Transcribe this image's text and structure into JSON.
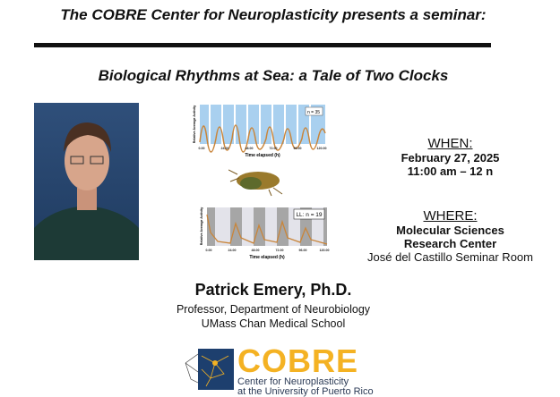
{
  "header": {
    "title": "The COBRE Center for Neuroplasticity presents a seminar:",
    "talk_title": "Biological Rhythms at Sea: a Tale of Two Clocks"
  },
  "figures": {
    "top": {
      "legend": "n = 35",
      "xlabel": "Time elapsed (h)",
      "ylabel": "Relative Average Activity",
      "ticks": [
        "0.00",
        "24.00",
        "48.00",
        "72.00",
        "96.00",
        "120.00"
      ]
    },
    "bottom": {
      "legend": "LL: n = 19",
      "xlabel": "Time elapsed (h)",
      "ylabel": "Relative Average Activity",
      "ticks": [
        "0.00",
        "24.00",
        "48.00",
        "72.00",
        "96.00",
        "120.00"
      ]
    }
  },
  "when": {
    "label": "WHEN:",
    "date": "February 27, 2025",
    "time": "11:00 am – 12 n"
  },
  "where": {
    "label": "WHERE:",
    "line1": "Molecular Sciences",
    "line2": "Research Center",
    "line3": "José del Castillo Seminar Room"
  },
  "speaker": {
    "name": "Patrick Emery, Ph.D.",
    "title": "Professor, Department of Neurobiology",
    "institution": "UMass Chan Medical School"
  },
  "logo": {
    "text": "COBRE",
    "line1": "Center for Neuroplasticity",
    "line2": "at the University of Puerto Rico",
    "colors": {
      "gold": "#f4b223",
      "navy": "#1d3f6e"
    }
  }
}
